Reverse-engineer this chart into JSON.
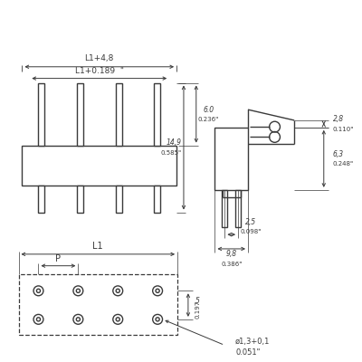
{
  "bg_color": "#ffffff",
  "line_color": "#3a3a3a",
  "dim_color": "#3a3a3a",
  "annotations": {
    "L1_4_8": "L1+4,8",
    "L1_0189": "L1+0.189  \"",
    "dim_60": "6.0",
    "dim_0236": "0.236\"",
    "dim_149": "14,9",
    "dim_0585": "0.585\"",
    "dim_28": "2,8",
    "dim_0110": "0.110\"",
    "dim_63": "6,3",
    "dim_0248": "0.248\"",
    "dim_25": "2,5",
    "dim_0098": "0.098\"",
    "dim_98": "9,8",
    "dim_0386": "0.386\"",
    "L1": "L1",
    "P": "P",
    "dim_5": "5",
    "dim_0197": "0.197",
    "dim_hole": "ø1,3+0,1",
    "dim_0051": "0.051\""
  }
}
